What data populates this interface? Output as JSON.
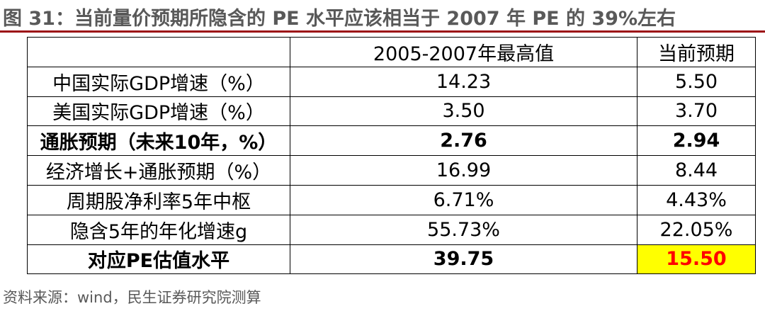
{
  "figure": {
    "title": "图 31：当前量价预期所隐含的 PE 水平应该相当于 2007 年 PE 的 39%左右",
    "source": "资料来源：wind，民生证券研究院测算"
  },
  "table": {
    "headers": [
      "",
      "2005-2007年最高值",
      "当前预期"
    ],
    "rows": [
      {
        "label": "中国实际GDP增速（%）",
        "max_2005_2007": "14.23",
        "current": "5.50"
      },
      {
        "label": "美国实际GDP增速（%）",
        "max_2005_2007": "3.50",
        "current": "3.70"
      },
      {
        "label": "通胀预期（未来10年，%）",
        "max_2005_2007": "2.76",
        "current": "2.94"
      },
      {
        "label": "经济增长+通胀预期（%）",
        "max_2005_2007": "16.99",
        "current": "8.44"
      },
      {
        "label": "周期股净利率5年中枢",
        "max_2005_2007": "6.71%",
        "current": "4.43%"
      },
      {
        "label": "隐含5年的年化增速g",
        "max_2005_2007": "55.73%",
        "current": "22.05%"
      },
      {
        "label": "对应PE估值水平",
        "max_2005_2007": "39.75",
        "current": "15.50"
      }
    ]
  },
  "colors": {
    "title_rule": "#9c0d14",
    "highlight_bg": "#ffff00",
    "highlight_text": "#ff0000",
    "caption_text": "#595959"
  }
}
